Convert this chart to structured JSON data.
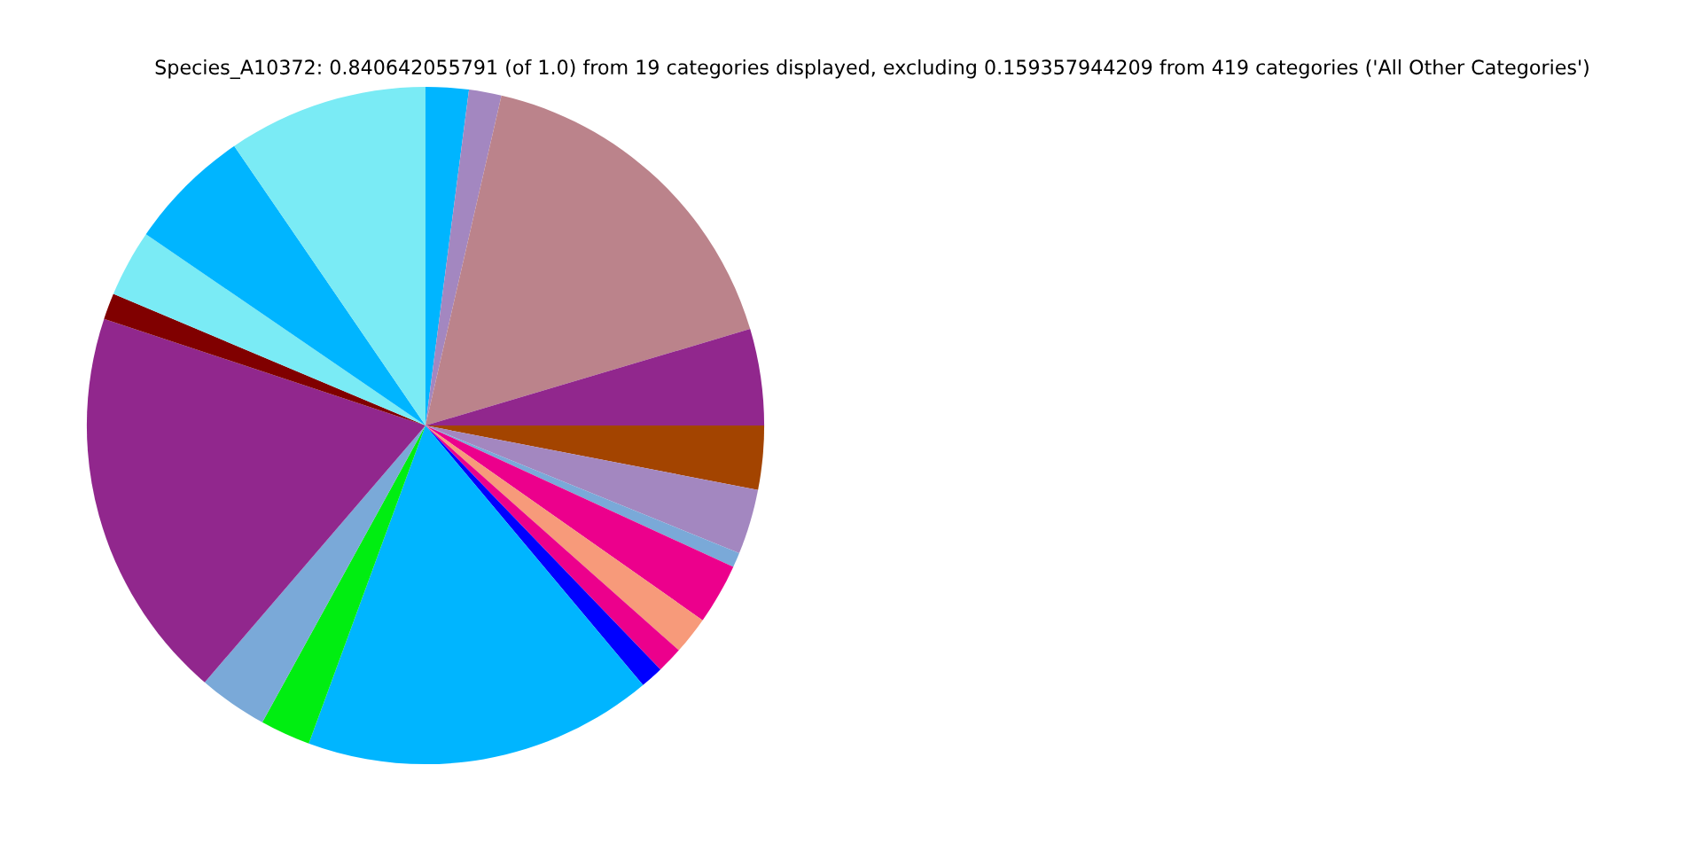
{
  "chart_data": {
    "type": "pie",
    "title": "Species_A10372: 0.840642055791 (of 1.0) from 19 categories displayed, excluding 0.159357944209 from 419 categories ('All Other Categories')",
    "categories": [
      null,
      null,
      null,
      null,
      null,
      null,
      null,
      null,
      null,
      null,
      null,
      null,
      null,
      null,
      null,
      null,
      null,
      null,
      null
    ],
    "values": [
      2.05,
      1.55,
      16.8,
      4.6,
      3.05,
      3.1,
      0.7,
      2.9,
      1.8,
      1.25,
      1.1,
      16.7,
      2.4,
      3.3,
      18.8,
      1.25,
      3.2,
      5.9,
      9.55
    ],
    "colors": [
      "#00b5ff",
      "#a387c0",
      "#bb838b",
      "#91278d",
      "#a34400",
      "#a387c0",
      "#7aa9d8",
      "#ec008c",
      "#f79a7a",
      "#ec008c",
      "#0000ff",
      "#00b5ff",
      "#00ee11",
      "#7aa9d8",
      "#91278d",
      "#800000",
      "#7aebf5",
      "#00b5ff",
      "#7aebf5"
    ]
  }
}
